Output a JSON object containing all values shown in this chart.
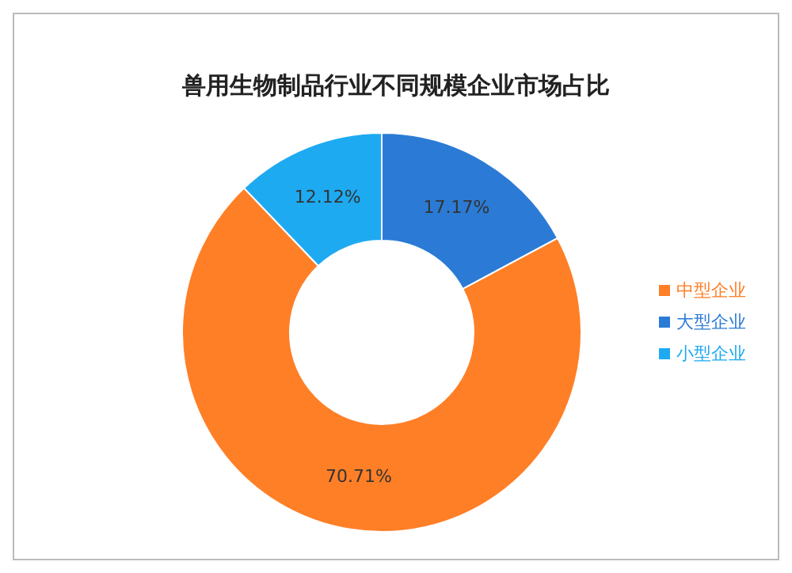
{
  "chart_data": {
    "type": "donut",
    "title": "兽用生物制品行业不同规模企业市场占比",
    "categories": [
      "大型企业",
      "中型企业",
      "小型企业"
    ],
    "values": [
      17.17,
      70.71,
      12.12
    ],
    "value_labels": [
      "17.17%",
      "70.71%",
      "12.12%"
    ],
    "colors": [
      "#2b7bd6",
      "#ff7f27",
      "#1eaaf1"
    ],
    "legend": "right"
  }
}
